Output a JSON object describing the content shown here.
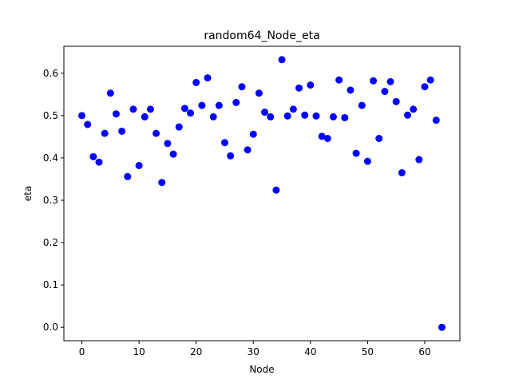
{
  "chart_data": {
    "type": "scatter",
    "title": "random64_Node_eta",
    "xlabel": "Node",
    "ylabel": "eta",
    "xlim": [
      -3.15,
      66.15
    ],
    "ylim": [
      -0.0316,
      0.6636
    ],
    "xticks": [
      0,
      10,
      20,
      30,
      40,
      50,
      60
    ],
    "yticks": [
      0.0,
      0.1,
      0.2,
      0.3,
      0.4,
      0.5,
      0.6
    ],
    "ytick_labels": [
      "0.0",
      "0.1",
      "0.2",
      "0.3",
      "0.4",
      "0.5",
      "0.6"
    ],
    "grid": false,
    "marker_color": "#0000ff",
    "series": [
      {
        "x": [
          0,
          1,
          2,
          3,
          4,
          5,
          6,
          7,
          8,
          9,
          10,
          11,
          12,
          13,
          14,
          15,
          16,
          17,
          18,
          19,
          20,
          21,
          22,
          23,
          24,
          25,
          26,
          27,
          28,
          29,
          30,
          31,
          32,
          33,
          34,
          35,
          36,
          37,
          38,
          39,
          40,
          41,
          42,
          43,
          44,
          45,
          46,
          47,
          48,
          49,
          50,
          51,
          52,
          53,
          54,
          55,
          56,
          57,
          58,
          59,
          60,
          61,
          62,
          63
        ],
        "y": [
          0.5,
          0.479,
          0.403,
          0.39,
          0.458,
          0.553,
          0.504,
          0.463,
          0.356,
          0.515,
          0.382,
          0.497,
          0.515,
          0.458,
          0.342,
          0.434,
          0.409,
          0.473,
          0.517,
          0.506,
          0.578,
          0.524,
          0.589,
          0.497,
          0.524,
          0.436,
          0.405,
          0.531,
          0.568,
          0.419,
          0.456,
          0.553,
          0.508,
          0.497,
          0.324,
          0.632,
          0.499,
          0.515,
          0.565,
          0.501,
          0.572,
          0.499,
          0.451,
          0.446,
          0.497,
          0.584,
          0.495,
          0.56,
          0.411,
          0.524,
          0.392,
          0.582,
          0.446,
          0.557,
          0.58,
          0.533,
          0.365,
          0.501,
          0.515,
          0.396,
          0.568,
          0.584,
          0.489,
          0.0
        ]
      }
    ]
  }
}
